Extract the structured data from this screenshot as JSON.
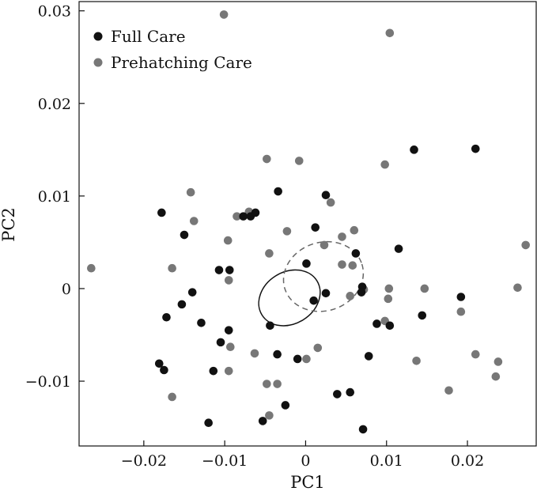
{
  "chart_data": {
    "type": "scatter",
    "xlabel": "PC1",
    "ylabel": "PC2",
    "xlim": [
      -0.028,
      0.0285
    ],
    "ylim": [
      -0.017,
      0.031
    ],
    "xticks": [
      -0.02,
      -0.01,
      0,
      0.01,
      0.02
    ],
    "xtick_labels": [
      "−0.02",
      "−0.01",
      "0",
      "0.01",
      "0.02"
    ],
    "yticks": [
      -0.01,
      0,
      0.01,
      0.02,
      0.03
    ],
    "ytick_labels": [
      "−0.01",
      "0",
      "0.01",
      "0.02",
      "0.03"
    ],
    "grid": false,
    "legend_position": "top-left",
    "series": [
      {
        "name": "Full Care",
        "color": "#111111",
        "points": [
          [
            -0.0178,
            0.0082
          ],
          [
            -0.015,
            0.0058
          ],
          [
            -0.0077,
            0.0078
          ],
          [
            -0.0068,
            0.0078
          ],
          [
            -0.0062,
            0.0082
          ],
          [
            -0.0034,
            0.0105
          ],
          [
            0.0025,
            0.0101
          ],
          [
            0.0134,
            0.015
          ],
          [
            0.021,
            0.0151
          ],
          [
            0.0012,
            0.0066
          ],
          [
            0.0115,
            0.0043
          ],
          [
            0.0062,
            0.0038
          ],
          [
            0.0001,
            0.0027
          ],
          [
            -0.0107,
            0.002
          ],
          [
            -0.0094,
            0.002
          ],
          [
            -0.014,
            -0.0004
          ],
          [
            -0.0153,
            -0.0017
          ],
          [
            -0.0172,
            -0.0031
          ],
          [
            -0.0129,
            -0.0037
          ],
          [
            0.001,
            -0.0013
          ],
          [
            0.0025,
            -0.0005
          ],
          [
            0.007,
            0.0002
          ],
          [
            0.0069,
            -0.0004
          ],
          [
            -0.0044,
            -0.004
          ],
          [
            -0.0095,
            -0.0045
          ],
          [
            -0.0105,
            -0.0058
          ],
          [
            -0.0035,
            -0.0071
          ],
          [
            -0.0114,
            -0.0089
          ],
          [
            -0.0181,
            -0.0081
          ],
          [
            -0.0175,
            -0.0088
          ],
          [
            -0.001,
            -0.0076
          ],
          [
            0.0078,
            -0.0073
          ],
          [
            0.0088,
            -0.0038
          ],
          [
            0.0104,
            -0.004
          ],
          [
            0.0144,
            -0.0029
          ],
          [
            0.0192,
            -0.0009
          ],
          [
            0.0039,
            -0.0114
          ],
          [
            0.0055,
            -0.0112
          ],
          [
            -0.0025,
            -0.0126
          ],
          [
            -0.012,
            -0.0145
          ],
          [
            -0.0053,
            -0.0143
          ],
          [
            0.0071,
            -0.0152
          ]
        ]
      },
      {
        "name": "Prehatching Care",
        "color": "#777777",
        "points": [
          [
            -0.0101,
            0.0296
          ],
          [
            0.0104,
            0.0276
          ],
          [
            -0.0048,
            0.014
          ],
          [
            -0.0008,
            0.0138
          ],
          [
            0.0098,
            0.0134
          ],
          [
            -0.0142,
            0.0104
          ],
          [
            -0.0138,
            0.0073
          ],
          [
            -0.0085,
            0.0078
          ],
          [
            -0.007,
            0.0083
          ],
          [
            0.0031,
            0.0093
          ],
          [
            -0.0096,
            0.0052
          ],
          [
            -0.0023,
            0.0062
          ],
          [
            0.0045,
            0.0056
          ],
          [
            0.006,
            0.0063
          ],
          [
            0.0023,
            0.0047
          ],
          [
            -0.0045,
            0.0038
          ],
          [
            -0.0265,
            0.0022
          ],
          [
            -0.0165,
            0.0022
          ],
          [
            0.0045,
            0.0026
          ],
          [
            0.0058,
            0.0025
          ],
          [
            -0.0095,
            0.0009
          ],
          [
            0.0072,
            -0.0001
          ],
          [
            0.0103,
            0.0
          ],
          [
            0.0147,
            0.0
          ],
          [
            0.0262,
            0.0001
          ],
          [
            0.0272,
            0.0047
          ],
          [
            0.0055,
            -0.0008
          ],
          [
            0.0102,
            -0.0011
          ],
          [
            0.0098,
            -0.0035
          ],
          [
            0.0192,
            -0.0025
          ],
          [
            -0.0093,
            -0.0063
          ],
          [
            -0.0063,
            -0.007
          ],
          [
            0.0015,
            -0.0064
          ],
          [
            0.0001,
            -0.0076
          ],
          [
            -0.0095,
            -0.0089
          ],
          [
            0.0137,
            -0.0078
          ],
          [
            0.021,
            -0.0071
          ],
          [
            0.0238,
            -0.0079
          ],
          [
            0.0235,
            -0.0095
          ],
          [
            -0.0048,
            -0.0103
          ],
          [
            -0.0035,
            -0.0103
          ],
          [
            -0.0165,
            -0.0117
          ],
          [
            0.0177,
            -0.011
          ],
          [
            -0.0045,
            -0.0137
          ]
        ]
      }
    ],
    "ellipses": [
      {
        "series": "Full Care",
        "style": "solid",
        "center": [
          -0.002,
          -0.001
        ],
        "rx": 0.004,
        "ry": 0.0028,
        "angle_deg": 32
      },
      {
        "series": "Prehatching Care",
        "style": "dashed",
        "center": [
          0.0022,
          0.0013
        ],
        "rx": 0.005,
        "ry": 0.0037,
        "angle_deg": 18
      }
    ]
  }
}
